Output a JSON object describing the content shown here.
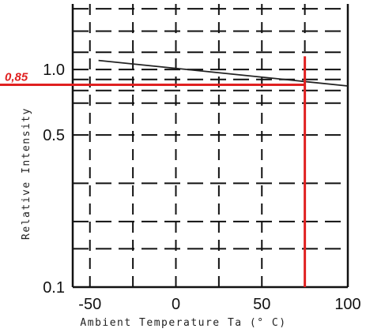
{
  "chart_data": {
    "type": "line",
    "xlabel": "Ambient Temperature Ta (° C)",
    "ylabel": "Relative Intensity",
    "xlim": [
      -60,
      100
    ],
    "ylim": [
      0.1,
      2.0
    ],
    "y_scale": "log",
    "grid": true,
    "x_ticks": [
      "-50",
      "0",
      "50",
      "100"
    ],
    "y_ticks": [
      "1.0",
      "0.5",
      "0.1"
    ],
    "series": [
      {
        "x": [
          -45,
          100
        ],
        "y": [
          1.1,
          0.84
        ],
        "color": "#222222"
      }
    ],
    "annotation": {
      "label": "0,85",
      "y_value": 0.85,
      "x_value": 75,
      "color": "#e02020"
    }
  }
}
